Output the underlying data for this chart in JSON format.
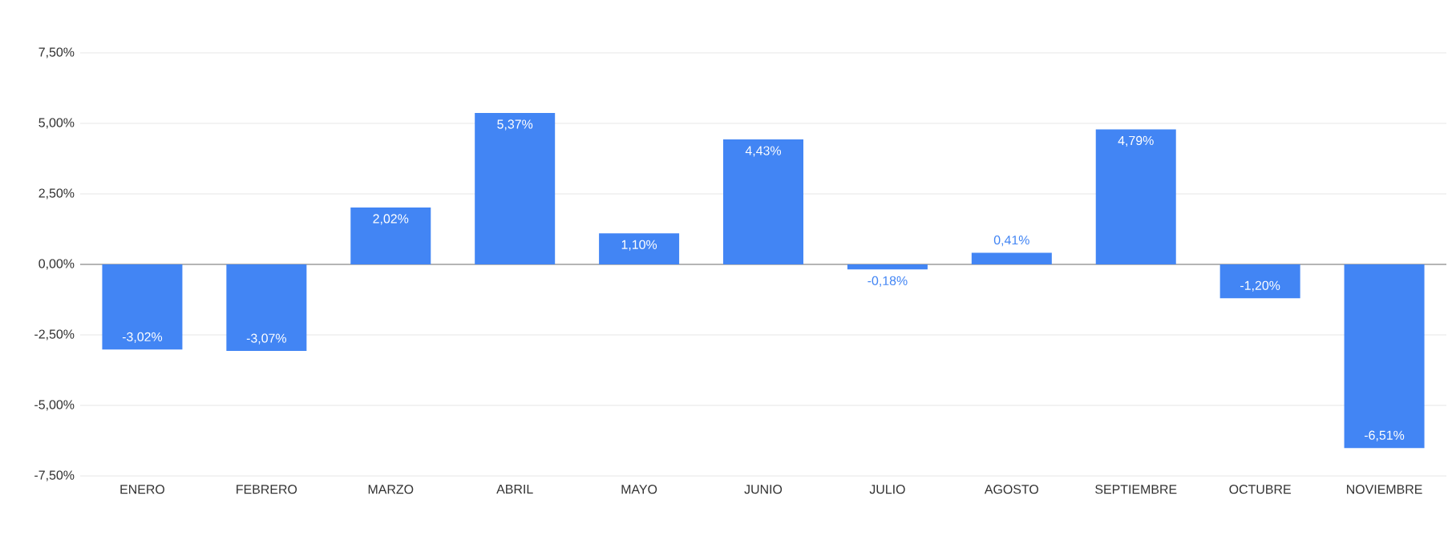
{
  "chart_data": {
    "type": "bar",
    "categories": [
      "ENERO",
      "FEBRERO",
      "MARZO",
      "ABRIL",
      "MAYO",
      "JUNIO",
      "JULIO",
      "AGOSTO",
      "SEPTIEMBRE",
      "OCTUBRE",
      "NOVIEMBRE"
    ],
    "values": [
      -3.02,
      -3.07,
      2.02,
      5.37,
      1.1,
      4.43,
      -0.18,
      0.41,
      4.79,
      -1.2,
      -6.51
    ],
    "value_labels": [
      "-3,02%",
      "-3,07%",
      "2,02%",
      "5,37%",
      "1,10%",
      "4,43%",
      "-0,18%",
      "0,41%",
      "4,79%",
      "-1,20%",
      "-6,51%"
    ],
    "color": "#4285f4",
    "ylim": [
      -7.5,
      7.5
    ],
    "yticks": [
      {
        "value": -7.5,
        "label": "-7,50%"
      },
      {
        "value": -5,
        "label": "-5,00%"
      },
      {
        "value": -2.5,
        "label": "-2,50%"
      },
      {
        "value": 0,
        "label": "0,00%"
      },
      {
        "value": 2.5,
        "label": "2,50%"
      },
      {
        "value": 5,
        "label": "5,00%"
      },
      {
        "value": 7.5,
        "label": "7,50%"
      }
    ],
    "grid": "y"
  }
}
